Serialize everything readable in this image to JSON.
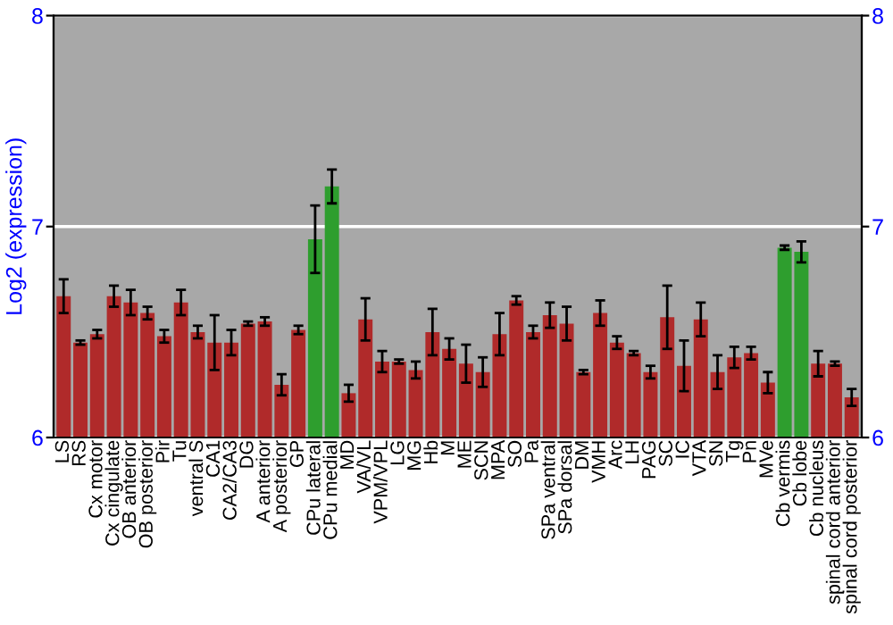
{
  "chart_data": {
    "type": "bar",
    "ylabel": "Log2 (expression)",
    "categories": [
      "LS",
      "RS",
      "Cx motor",
      "Cx cingulate",
      "OB anterior",
      "OB posterior",
      "Pir",
      "Tu",
      "ventral S",
      "CA1",
      "CA2/CA3",
      "DG",
      "A anterior",
      "A posterior",
      "GP",
      "CPu lateral",
      "CPu medial",
      "MD",
      "VA/VL",
      "VPM/VPL",
      "LG",
      "MG",
      "Hb",
      "M",
      "ME",
      "SCN",
      "MPA",
      "SO",
      "Pa",
      "SPa ventral",
      "SPa dorsal",
      "DM",
      "VMH",
      "Arc",
      "LH",
      "PAG",
      "SC",
      "IC",
      "VTA",
      "SN",
      "Tg",
      "Pn",
      "MVe",
      "Cb vermis",
      "Cb lobe",
      "Cb nucleus",
      "spinal cord anterior",
      "spinal cord posterior"
    ],
    "values": [
      6.67,
      6.45,
      6.49,
      6.67,
      6.64,
      6.59,
      6.48,
      6.64,
      6.5,
      6.45,
      6.45,
      6.54,
      6.55,
      6.25,
      6.51,
      6.94,
      7.19,
      6.21,
      6.56,
      6.36,
      6.36,
      6.32,
      6.5,
      6.42,
      6.35,
      6.31,
      6.49,
      6.65,
      6.5,
      6.58,
      6.54,
      6.31,
      6.59,
      6.45,
      6.4,
      6.31,
      6.57,
      6.34,
      6.56,
      6.31,
      6.38,
      6.4,
      6.26,
      6.9,
      6.88,
      6.35,
      6.35,
      6.19
    ],
    "errors": [
      0.08,
      0.01,
      0.02,
      0.05,
      0.06,
      0.03,
      0.03,
      0.06,
      0.03,
      0.13,
      0.06,
      0.01,
      0.02,
      0.05,
      0.02,
      0.16,
      0.08,
      0.04,
      0.1,
      0.05,
      0.01,
      0.04,
      0.11,
      0.05,
      0.09,
      0.07,
      0.1,
      0.02,
      0.03,
      0.06,
      0.08,
      0.01,
      0.06,
      0.03,
      0.01,
      0.03,
      0.15,
      0.12,
      0.08,
      0.08,
      0.05,
      0.03,
      0.05,
      0.01,
      0.05,
      0.06,
      0.01,
      0.04
    ],
    "colors": [
      "#b02a2a",
      "#b02a2a",
      "#b02a2a",
      "#b02a2a",
      "#b02a2a",
      "#b02a2a",
      "#b02a2a",
      "#b02a2a",
      "#b02a2a",
      "#b02a2a",
      "#b02a2a",
      "#b02a2a",
      "#b02a2a",
      "#b02a2a",
      "#b02a2a",
      "#2e9e2e",
      "#2e9e2e",
      "#b02a2a",
      "#b02a2a",
      "#b02a2a",
      "#b02a2a",
      "#b02a2a",
      "#b02a2a",
      "#b02a2a",
      "#b02a2a",
      "#b02a2a",
      "#b02a2a",
      "#b02a2a",
      "#b02a2a",
      "#b02a2a",
      "#b02a2a",
      "#b02a2a",
      "#b02a2a",
      "#b02a2a",
      "#b02a2a",
      "#b02a2a",
      "#b02a2a",
      "#b02a2a",
      "#b02a2a",
      "#b02a2a",
      "#b02a2a",
      "#b02a2a",
      "#b02a2a",
      "#2e9e2e",
      "#2e9e2e",
      "#b02a2a",
      "#b02a2a",
      "#b02a2a"
    ],
    "ylim": [
      6,
      8
    ],
    "yticks": [
      6,
      7,
      8
    ],
    "y2lim": [
      6,
      8
    ],
    "y2ticks": [
      6,
      7,
      8
    ],
    "grid": "y"
  }
}
